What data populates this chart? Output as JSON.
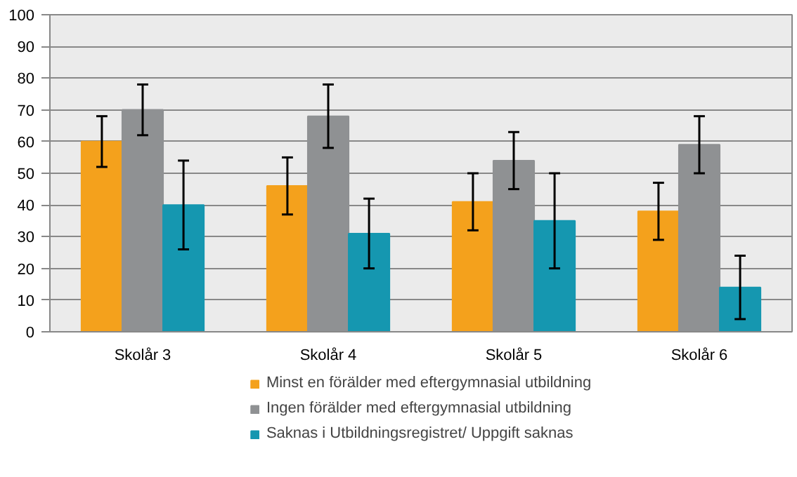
{
  "chart_data": {
    "type": "bar",
    "categories": [
      "Skolår 3",
      "Skolår 4",
      "Skolår 5",
      "Skolår 6"
    ],
    "series": [
      {
        "name": "Minst en förälder med eftergymnasial utbildning",
        "color": "#f4a11c",
        "values": [
          60,
          46,
          41,
          38
        ],
        "errors": [
          [
            52,
            68
          ],
          [
            37,
            55
          ],
          [
            32,
            50
          ],
          [
            29,
            47
          ]
        ]
      },
      {
        "name": "Ingen förälder med eftergymnasial utbildning",
        "color": "#8f9193",
        "values": [
          70,
          68,
          54,
          59
        ],
        "errors": [
          [
            62,
            78
          ],
          [
            58,
            78
          ],
          [
            45,
            63
          ],
          [
            50,
            68
          ]
        ]
      },
      {
        "name": "Saknas i Utbildningsregistret/ Uppgift saknas",
        "color": "#1597b0",
        "values": [
          40,
          31,
          35,
          14
        ],
        "errors": [
          [
            26,
            54
          ],
          [
            20,
            42
          ],
          [
            20,
            50
          ],
          [
            4,
            24
          ]
        ]
      }
    ],
    "ylim": [
      0,
      100
    ],
    "yticks": [
      0,
      10,
      20,
      30,
      40,
      50,
      60,
      70,
      80,
      90,
      100
    ],
    "grid": "y",
    "legend": "bottom"
  }
}
